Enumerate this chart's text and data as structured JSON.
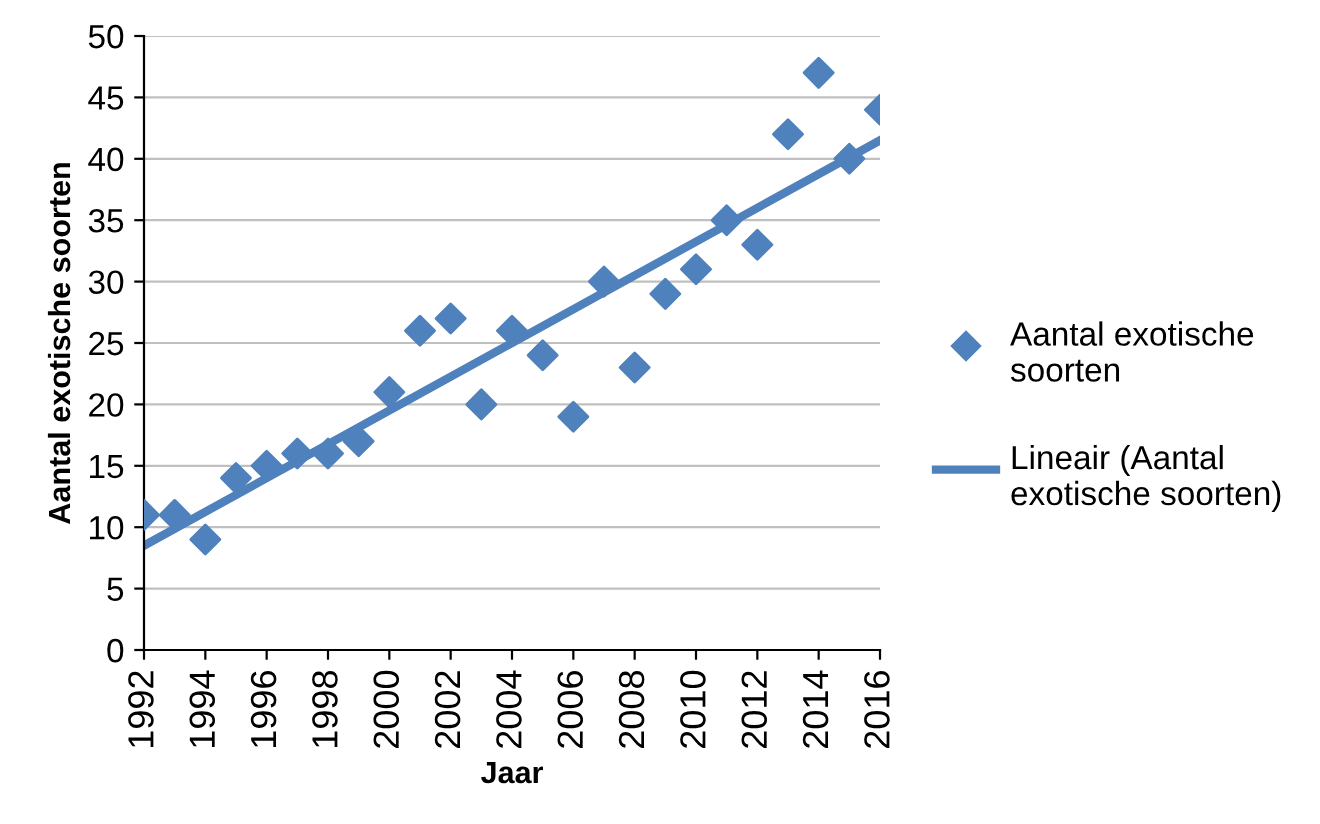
{
  "chart_data": {
    "type": "scatter",
    "xlabel": "Jaar",
    "ylabel": "Aantal exotische soorten",
    "xlim": [
      1992,
      2016
    ],
    "xticks": [
      1992,
      1994,
      1996,
      1998,
      2000,
      2002,
      2004,
      2006,
      2008,
      2010,
      2012,
      2014,
      2016
    ],
    "ylim": [
      0,
      50
    ],
    "yticks": [
      0,
      5,
      10,
      15,
      20,
      25,
      30,
      35,
      40,
      45,
      50
    ],
    "grid": "y",
    "legend": "right",
    "series": [
      {
        "name": "Aantal exotische soorten",
        "marker": "diamond",
        "color": "#4f81bd",
        "x": [
          1992,
          1993,
          1994,
          1995,
          1996,
          1997,
          1998,
          1999,
          2000,
          2001,
          2002,
          2003,
          2004,
          2005,
          2006,
          2007,
          2008,
          2009,
          2010,
          2011,
          2012,
          2013,
          2014,
          2015,
          2016
        ],
        "values": [
          11,
          11,
          9,
          14,
          15,
          16,
          16,
          17,
          21,
          26,
          27,
          20,
          26,
          24,
          19,
          30,
          23,
          29,
          31,
          35,
          33,
          42,
          47,
          40,
          44
        ]
      },
      {
        "name": "Lineair (Aantal exotische soorten)",
        "type": "line",
        "color": "#4f81bd",
        "x": [
          1992,
          2016
        ],
        "values": [
          8.5,
          41.5
        ]
      }
    ]
  }
}
